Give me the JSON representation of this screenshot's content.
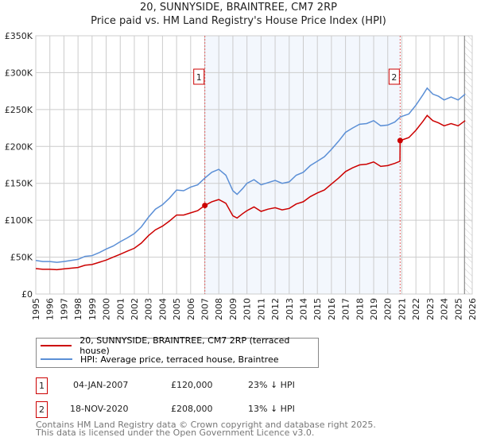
{
  "chart_data": {
    "type": "line",
    "title": "20, SUNNYSIDE, BRAINTREE, CM7 2RP",
    "subtitle": "Price paid vs. HM Land Registry's House Price Index (HPI)",
    "xlim": [
      1995,
      2026
    ],
    "ylim": [
      0,
      350000
    ],
    "x_ticks": [
      "1995",
      "1996",
      "1997",
      "1998",
      "1999",
      "2000",
      "2001",
      "2002",
      "2003",
      "2004",
      "2005",
      "2006",
      "2007",
      "2008",
      "2009",
      "2010",
      "2011",
      "2012",
      "2013",
      "2014",
      "2015",
      "2016",
      "2017",
      "2018",
      "2019",
      "2020",
      "2021",
      "2022",
      "2023",
      "2024",
      "2025",
      "2026"
    ],
    "y_ticks": [
      {
        "v": 0,
        "label": "£0"
      },
      {
        "v": 50000,
        "label": "£50K"
      },
      {
        "v": 100000,
        "label": "£100K"
      },
      {
        "v": 150000,
        "label": "£150K"
      },
      {
        "v": 200000,
        "label": "£200K"
      },
      {
        "v": 250000,
        "label": "£250K"
      },
      {
        "v": 300000,
        "label": "£300K"
      },
      {
        "v": 350000,
        "label": "£350K"
      }
    ],
    "grid": true,
    "shaded_range": [
      2007.01,
      2020.88
    ],
    "hatched_from": 2025.45,
    "series": [
      {
        "name": "20, SUNNYSIDE, BRAINTREE, CM7 2RP (terraced house)",
        "color": "#cc0000",
        "points": [
          [
            1995,
            34.5
          ],
          [
            1995.5,
            33.5
          ],
          [
            1996,
            33.5
          ],
          [
            1996.5,
            33
          ],
          [
            1997,
            34
          ],
          [
            1998,
            36
          ],
          [
            1998.5,
            39
          ],
          [
            1999,
            40
          ],
          [
            1999.5,
            43
          ],
          [
            2000,
            46
          ],
          [
            2000.5,
            50
          ],
          [
            2001,
            54
          ],
          [
            2001.5,
            58
          ],
          [
            2002,
            62
          ],
          [
            2002.5,
            69
          ],
          [
            2003,
            79
          ],
          [
            2003.5,
            87
          ],
          [
            2004,
            92
          ],
          [
            2004.5,
            99
          ],
          [
            2005,
            107
          ],
          [
            2005.5,
            107
          ],
          [
            2006,
            110
          ],
          [
            2006.5,
            113
          ],
          [
            2007,
            120
          ],
          [
            2007.5,
            125
          ],
          [
            2008,
            128
          ],
          [
            2008.5,
            123
          ],
          [
            2009,
            106
          ],
          [
            2009.3,
            103
          ],
          [
            2009.7,
            109
          ],
          [
            2010,
            113
          ],
          [
            2010.5,
            118
          ],
          [
            2011,
            112
          ],
          [
            2011.5,
            115
          ],
          [
            2012,
            117
          ],
          [
            2012.5,
            114
          ],
          [
            2013,
            116
          ],
          [
            2013.5,
            122
          ],
          [
            2014,
            125
          ],
          [
            2014.5,
            132
          ],
          [
            2015,
            137
          ],
          [
            2015.5,
            141
          ],
          [
            2016,
            149
          ],
          [
            2016.5,
            157
          ],
          [
            2017,
            166
          ],
          [
            2017.5,
            171
          ],
          [
            2018,
            175
          ],
          [
            2018.5,
            176
          ],
          [
            2019,
            179
          ],
          [
            2019.5,
            173
          ],
          [
            2020,
            174
          ],
          [
            2020.5,
            177
          ],
          [
            2020.87,
            180
          ],
          [
            2020.88,
            208
          ],
          [
            2021.5,
            212
          ],
          [
            2022,
            222
          ],
          [
            2022.5,
            234
          ],
          [
            2022.8,
            242
          ],
          [
            2023.2,
            235
          ],
          [
            2023.6,
            232
          ],
          [
            2024,
            228
          ],
          [
            2024.5,
            231
          ],
          [
            2025,
            228
          ],
          [
            2025.5,
            235
          ]
        ]
      },
      {
        "name": "HPI: Average price, terraced house, Braintree",
        "color": "#5b8fd6",
        "points": [
          [
            1995,
            45.5
          ],
          [
            1995.5,
            44
          ],
          [
            1996,
            44
          ],
          [
            1996.5,
            43
          ],
          [
            1997,
            44
          ],
          [
            1998,
            47
          ],
          [
            1998.5,
            51
          ],
          [
            1999,
            52
          ],
          [
            1999.5,
            56
          ],
          [
            2000,
            61
          ],
          [
            2000.5,
            65
          ],
          [
            2001,
            71
          ],
          [
            2001.5,
            76
          ],
          [
            2002,
            82
          ],
          [
            2002.5,
            91
          ],
          [
            2003,
            104
          ],
          [
            2003.5,
            115
          ],
          [
            2004,
            121
          ],
          [
            2004.5,
            130
          ],
          [
            2005,
            141
          ],
          [
            2005.5,
            140
          ],
          [
            2006,
            145
          ],
          [
            2006.5,
            148
          ],
          [
            2007,
            157
          ],
          [
            2007.5,
            165
          ],
          [
            2008,
            169
          ],
          [
            2008.5,
            161
          ],
          [
            2009,
            140
          ],
          [
            2009.3,
            135
          ],
          [
            2009.7,
            143
          ],
          [
            2010,
            150
          ],
          [
            2010.5,
            155
          ],
          [
            2011,
            148
          ],
          [
            2011.5,
            151
          ],
          [
            2012,
            154
          ],
          [
            2012.5,
            150
          ],
          [
            2013,
            152
          ],
          [
            2013.5,
            161
          ],
          [
            2014,
            165
          ],
          [
            2014.5,
            174
          ],
          [
            2015,
            180
          ],
          [
            2015.5,
            186
          ],
          [
            2016,
            196
          ],
          [
            2016.5,
            207
          ],
          [
            2017,
            219
          ],
          [
            2017.5,
            225
          ],
          [
            2018,
            230
          ],
          [
            2018.5,
            231
          ],
          [
            2019,
            235
          ],
          [
            2019.5,
            228
          ],
          [
            2020,
            229
          ],
          [
            2020.5,
            233
          ],
          [
            2020.9,
            240
          ],
          [
            2021.5,
            244
          ],
          [
            2022,
            256
          ],
          [
            2022.5,
            270
          ],
          [
            2022.8,
            279
          ],
          [
            2023.2,
            271
          ],
          [
            2023.6,
            268
          ],
          [
            2024,
            263
          ],
          [
            2024.5,
            267
          ],
          [
            2025,
            263
          ],
          [
            2025.5,
            271
          ]
        ]
      }
    ],
    "point_units": "thousand GBP",
    "annotations": [
      {
        "label": "1",
        "x": 2007.01,
        "value": 120000
      },
      {
        "label": "2",
        "x": 2020.88,
        "value": 208000
      }
    ]
  },
  "legend": {
    "items": [
      "20, SUNNYSIDE, BRAINTREE, CM7 2RP (terraced house)",
      "HPI: Average price, terraced house, Braintree"
    ]
  },
  "transactions": [
    {
      "num": "1",
      "date": "04-JAN-2007",
      "price": "£120,000",
      "hpi": "23% ↓ HPI"
    },
    {
      "num": "2",
      "date": "18-NOV-2020",
      "price": "£208,000",
      "hpi": "13% ↓ HPI"
    }
  ],
  "footer": [
    "Contains HM Land Registry data © Crown copyright and database right 2025.",
    "This data is licensed under the Open Government Licence v3.0."
  ]
}
